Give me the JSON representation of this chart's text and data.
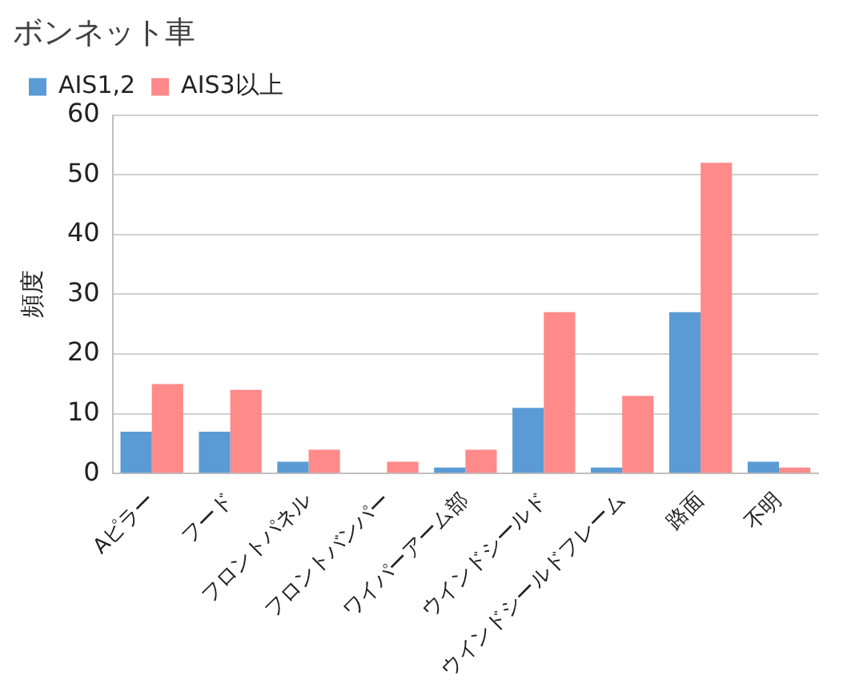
{
  "chart_data": {
    "type": "bar",
    "title": "ボンネット車",
    "ylabel": "頻度",
    "categories": [
      "Aピラー",
      "フード",
      "フロントパネル",
      "フロントバンパー",
      "ワイパーアーム部",
      "ウインドシールド",
      "ウインドシールドフレーム",
      "路面",
      "不明"
    ],
    "series": [
      {
        "name": "AIS1,2",
        "color": "#5b9bd5",
        "values": [
          7,
          7,
          2,
          0,
          1,
          11,
          1,
          27,
          2
        ]
      },
      {
        "name": "AIS3以上",
        "color": "#ff8a8a",
        "values": [
          15,
          14,
          4,
          2,
          4,
          27,
          13,
          52,
          1
        ]
      }
    ],
    "ylim": [
      0,
      60
    ],
    "yticks": [
      0,
      10,
      20,
      30,
      40,
      50,
      60
    ],
    "grid": "y",
    "legend": "top left"
  }
}
